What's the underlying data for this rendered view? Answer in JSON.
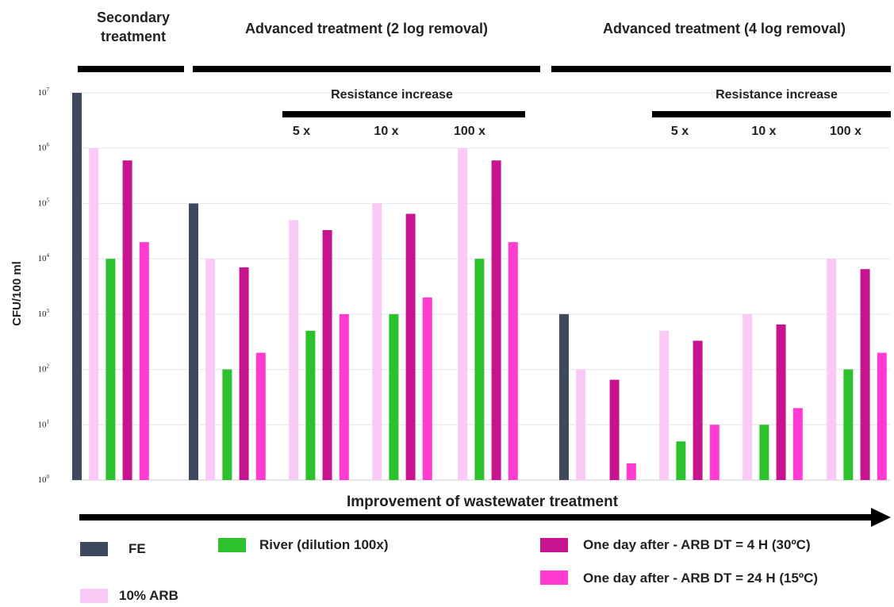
{
  "chart_data": {
    "type": "bar",
    "ylabel": "CFU/100 ml",
    "yscale": "log",
    "ylim": [
      1,
      10000000
    ],
    "y_ticks": [
      {
        "value": 1,
        "base": "10",
        "exp": "0"
      },
      {
        "value": 10,
        "base": "10",
        "exp": "1"
      },
      {
        "value": 100,
        "base": "10",
        "exp": "2"
      },
      {
        "value": 1000,
        "base": "10",
        "exp": "3"
      },
      {
        "value": 10000,
        "base": "10",
        "exp": "4"
      },
      {
        "value": 100000,
        "base": "10",
        "exp": "5"
      },
      {
        "value": 1000000,
        "base": "10",
        "exp": "6"
      },
      {
        "value": 10000000,
        "base": "10",
        "exp": "7"
      }
    ],
    "grid": true,
    "xlabel": "Improvement of wastewater treatment",
    "headers": {
      "secondary": [
        "Secondary",
        "treatment"
      ],
      "adv2": "Advanced treatment (2 log removal)",
      "adv4": "Advanced treatment (4 log removal)",
      "resistance": "Resistance increase",
      "resistance_levels": [
        "5 x",
        "10 x",
        "100 x"
      ]
    },
    "series": [
      {
        "name": "FE",
        "color": "#3d4a5e"
      },
      {
        "name": "10% ARB",
        "color": "#fbc9f6"
      },
      {
        "name": "River (dilution 100x)",
        "color": "#2ec12e"
      },
      {
        "name": "One day after - ARB  DT = 4 H (30ºC)",
        "color": "#c8138e"
      },
      {
        "name": "One day after - ARB  DT = 24 H (15ºC)",
        "color": "#ff3ccf"
      }
    ],
    "groups": [
      {
        "group": "Secondary treatment",
        "values": [
          10000000,
          1000000,
          10000,
          600000,
          20000
        ]
      },
      {
        "group": "Advanced treatment (2 log removal)",
        "values": [
          100000,
          10000,
          100,
          7000,
          200
        ]
      },
      {
        "group": "2 log removal - 5 x",
        "values": [
          null,
          50000,
          500,
          33000,
          1000
        ]
      },
      {
        "group": "2 log removal - 10 x",
        "values": [
          null,
          100000,
          1000,
          65000,
          2000
        ]
      },
      {
        "group": "2 log removal - 100 x",
        "values": [
          null,
          1000000,
          10000,
          600000,
          20000
        ]
      },
      {
        "group": "Advanced treatment (4 log removal)",
        "values": [
          1000,
          100,
          null,
          65,
          2
        ]
      },
      {
        "group": "4 log removal - 5 x",
        "values": [
          null,
          500,
          5,
          330,
          10
        ]
      },
      {
        "group": "4 log removal - 10 x",
        "values": [
          null,
          1000,
          10,
          650,
          20
        ]
      },
      {
        "group": "4 log removal - 100 x",
        "values": [
          null,
          10000,
          100,
          6500,
          200
        ]
      }
    ]
  }
}
